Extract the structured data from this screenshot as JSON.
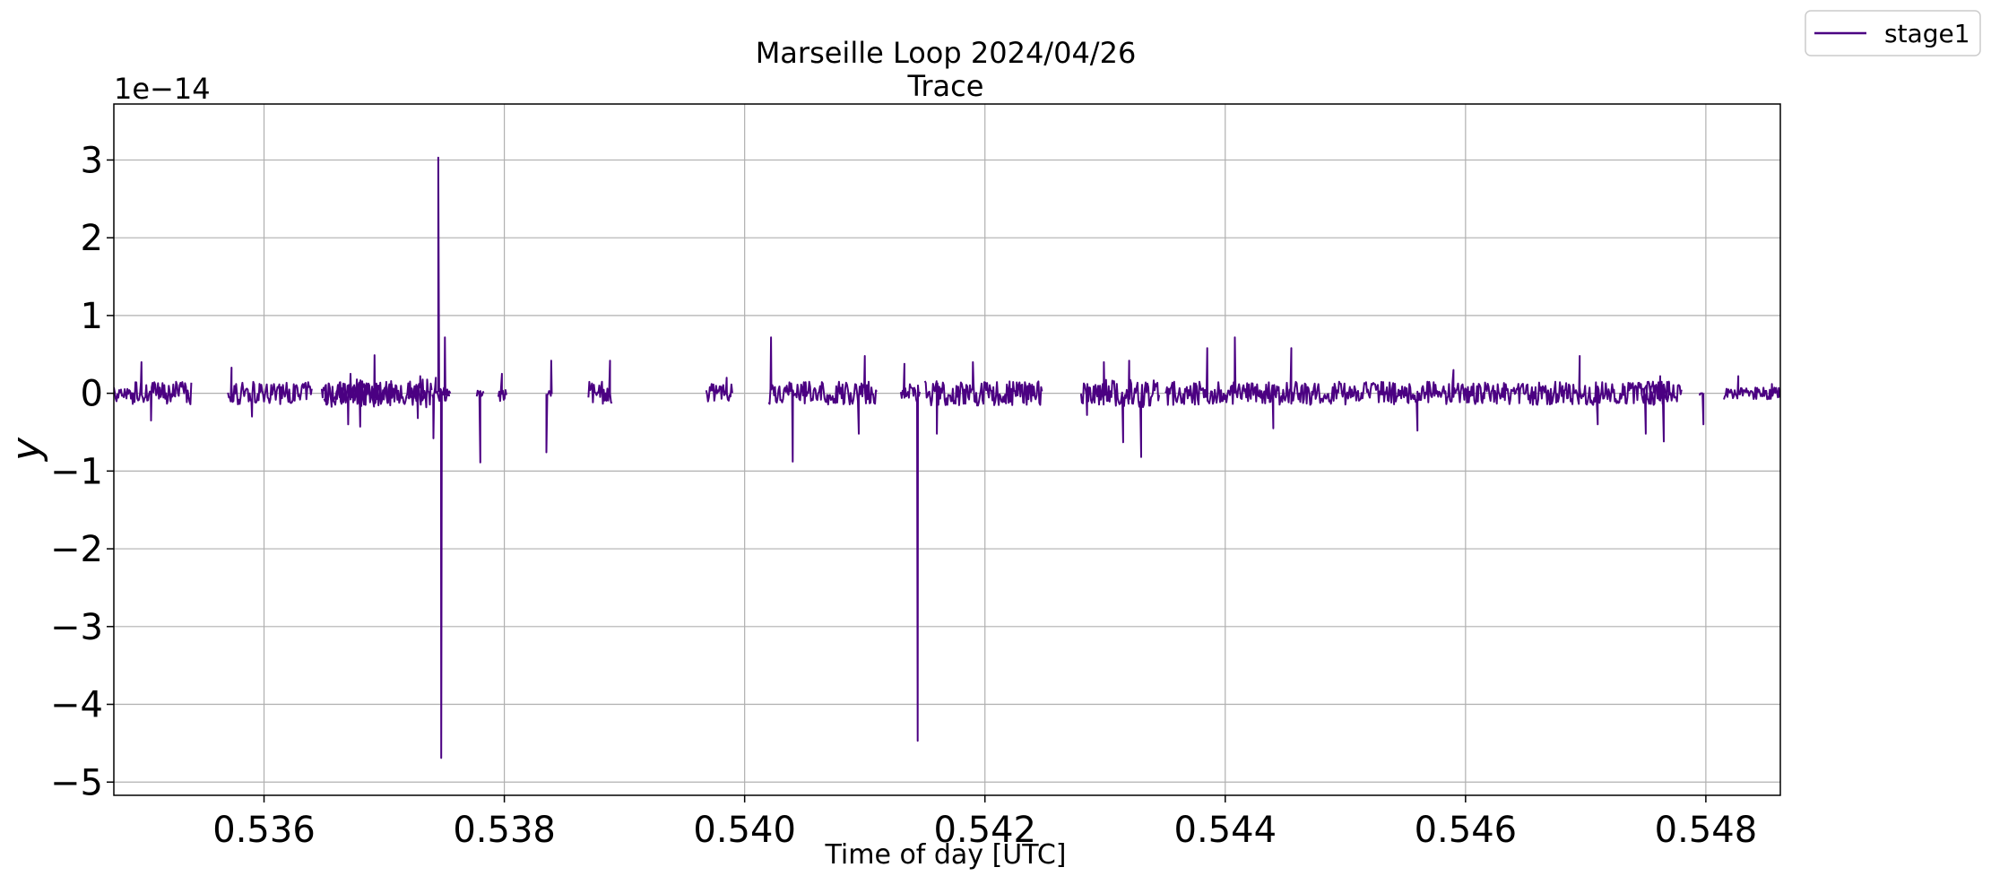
{
  "chart_data": {
    "type": "line",
    "title": "Marseille Loop 2024/04/26",
    "subtitle": "Trace",
    "xlabel": "Time of day [UTC]",
    "ylabel": "y",
    "y_offset_label": "1e−14",
    "xlim": [
      0.53475,
      0.54862
    ],
    "ylim": [
      -5.17,
      3.72
    ],
    "grid": true,
    "legend_position": "outside top-right",
    "x_ticks": [
      0.536,
      0.538,
      0.54,
      0.542,
      0.544,
      0.546,
      0.548
    ],
    "x_tick_labels": [
      "0.536",
      "0.538",
      "0.540",
      "0.542",
      "0.544",
      "0.546",
      "0.548"
    ],
    "y_ticks": [
      -5,
      -4,
      -3,
      -2,
      -1,
      0,
      1,
      2,
      3
    ],
    "y_tick_labels": [
      "−5",
      "−4",
      "−3",
      "−2",
      "−1",
      "0",
      "1",
      "2",
      "3"
    ],
    "series": [
      {
        "name": "stage1",
        "color": "#4b0082",
        "segments": [
          {
            "x_start": 0.53475,
            "x_end": 0.5354,
            "noise_amp": 0.15,
            "peaks": [
              [
                0.53498,
                0.4
              ],
              [
                0.53506,
                -0.35
              ]
            ]
          },
          {
            "x_start": 0.5357,
            "x_end": 0.5364,
            "noise_amp": 0.15,
            "peaks": [
              [
                0.53573,
                0.33
              ],
              [
                0.5359,
                -0.3
              ]
            ]
          },
          {
            "x_start": 0.5365,
            "x_end": 0.5371,
            "noise_amp": 0.15,
            "peaks": [
              [
                0.53672,
                0.25
              ]
            ]
          },
          {
            "x_start": 0.5366,
            "x_end": 0.5369,
            "noise_amp": 0.12,
            "peaks": [
              [
                0.5368,
                -0.43
              ]
            ]
          },
          {
            "x_start": 0.5372,
            "x_end": 0.53735,
            "noise_amp": 0.12,
            "peaks": [
              [
                0.53728,
                -0.32
              ],
              [
                0.5373,
                0.22
              ]
            ]
          },
          {
            "x_start": 0.53648,
            "x_end": 0.5374,
            "noise_amp": 0.18,
            "peaks": [
              [
                0.53692,
                0.49
              ],
              [
                0.5367,
                -0.4
              ]
            ]
          },
          {
            "x_start": 0.5374,
            "x_end": 0.53755,
            "noise_amp": 0.1,
            "peaks": [
              [
                0.53741,
                -0.58
              ],
              [
                0.53743,
                0.2
              ]
            ]
          },
          {
            "x_start": 0.53745,
            "x_end": 0.53755,
            "noise_amp": 0.05,
            "peaks": [
              [
                0.53745,
                3.03
              ],
              [
                0.537475,
                -4.69
              ],
              [
                0.537505,
                0.72
              ]
            ]
          },
          {
            "x_start": 0.53777,
            "x_end": 0.53783,
            "noise_amp": 0.05,
            "peaks": [
              [
                0.5378,
                -0.89
              ]
            ]
          },
          {
            "x_start": 0.53795,
            "x_end": 0.53802,
            "noise_amp": 0.1,
            "peaks": [
              [
                0.53798,
                0.25
              ]
            ]
          },
          {
            "x_start": 0.53835,
            "x_end": 0.5384,
            "noise_amp": 0.05,
            "peaks": [
              [
                0.53835,
                -0.76
              ],
              [
                0.53839,
                0.42
              ]
            ]
          },
          {
            "x_start": 0.5387,
            "x_end": 0.5389,
            "noise_amp": 0.15,
            "peaks": [
              [
                0.53888,
                0.42
              ]
            ]
          },
          {
            "x_start": 0.53968,
            "x_end": 0.5399,
            "noise_amp": 0.12,
            "peaks": [
              [
                0.53985,
                0.2
              ]
            ]
          },
          {
            "x_start": 0.5402,
            "x_end": 0.5411,
            "noise_amp": 0.15,
            "peaks": [
              [
                0.54022,
                0.72
              ],
              [
                0.5404,
                -0.88
              ],
              [
                0.54095,
                -0.52
              ],
              [
                0.541,
                0.48
              ]
            ]
          },
          {
            "x_start": 0.5413,
            "x_end": 0.54146,
            "noise_amp": 0.12,
            "peaks": [
              [
                0.54133,
                0.38
              ],
              [
                0.54144,
                -4.47
              ]
            ]
          },
          {
            "x_start": 0.5415,
            "x_end": 0.54248,
            "noise_amp": 0.16,
            "peaks": [
              [
                0.5416,
                -0.52
              ],
              [
                0.5419,
                0.4
              ]
            ]
          },
          {
            "x_start": 0.5428,
            "x_end": 0.543,
            "noise_amp": 0.15,
            "peaks": [
              [
                0.54285,
                -0.28
              ],
              [
                0.54299,
                0.4
              ]
            ]
          },
          {
            "x_start": 0.543,
            "x_end": 0.54345,
            "noise_amp": 0.18,
            "peaks": [
              [
                0.54315,
                -0.63
              ],
              [
                0.5433,
                -0.82
              ],
              [
                0.5432,
                0.42
              ]
            ]
          },
          {
            "x_start": 0.5435,
            "x_end": 0.5478,
            "noise_amp": 0.15,
            "peaks": [
              [
                0.54385,
                0.58
              ],
              [
                0.54408,
                0.72
              ],
              [
                0.54455,
                0.58
              ],
              [
                0.5444,
                -0.45
              ],
              [
                0.5456,
                -0.48
              ],
              [
                0.5459,
                0.3
              ],
              [
                0.54695,
                0.48
              ],
              [
                0.5471,
                -0.4
              ]
            ]
          },
          {
            "x_start": 0.54747,
            "x_end": 0.5477,
            "noise_amp": 0.15,
            "peaks": [
              [
                0.5475,
                -0.52
              ],
              [
                0.54765,
                -0.62
              ],
              [
                0.54762,
                0.22
              ]
            ]
          },
          {
            "x_start": 0.54795,
            "x_end": 0.54798,
            "noise_amp": 0.0,
            "peaks": [
              [
                0.54795,
                -0.02
              ],
              [
                0.54798,
                -0.4
              ]
            ]
          },
          {
            "x_start": 0.54815,
            "x_end": 0.54862,
            "noise_amp": 0.08,
            "peaks": [
              [
                0.54827,
                0.22
              ],
              [
                0.54855,
                0.12
              ]
            ]
          }
        ]
      }
    ]
  }
}
